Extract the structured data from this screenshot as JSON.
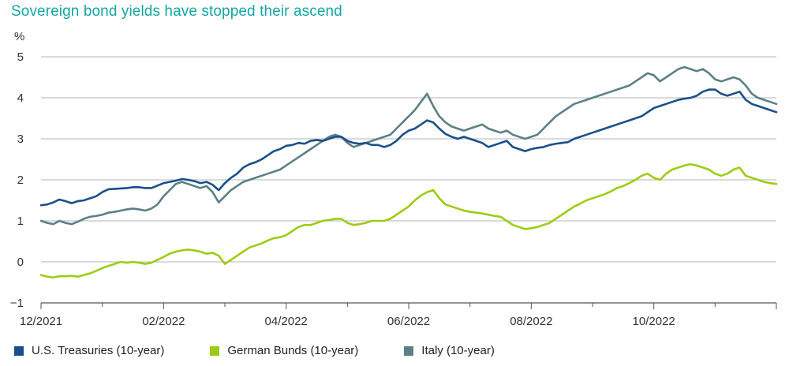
{
  "chart_data": {
    "type": "line",
    "title": "Sovereign bond yields have stopped their ascend",
    "ylabel": "%",
    "ylim": [
      -1,
      5
    ],
    "yticks": [
      -1,
      0,
      1,
      2,
      3,
      4,
      5
    ],
    "xticks": [
      "12/2021",
      "02/2022",
      "04/2022",
      "06/2022",
      "08/2022",
      "10/2022"
    ],
    "xtick_index": [
      0,
      20,
      40,
      60,
      80,
      100
    ],
    "n_points": 121,
    "grid": "horizontal",
    "legend": "bottom",
    "series": [
      {
        "name": "U.S. Treasuries (10-year)",
        "color": "#1a4f8b",
        "values": [
          1.38,
          1.4,
          1.45,
          1.52,
          1.48,
          1.43,
          1.48,
          1.5,
          1.55,
          1.6,
          1.7,
          1.77,
          1.78,
          1.79,
          1.8,
          1.82,
          1.82,
          1.8,
          1.8,
          1.86,
          1.92,
          1.95,
          1.98,
          2.02,
          2.0,
          1.97,
          1.92,
          1.95,
          1.88,
          1.75,
          1.92,
          2.05,
          2.15,
          2.3,
          2.38,
          2.43,
          2.5,
          2.6,
          2.7,
          2.75,
          2.83,
          2.85,
          2.9,
          2.88,
          2.95,
          2.97,
          2.95,
          3.0,
          3.05,
          3.05,
          2.95,
          2.9,
          2.88,
          2.9,
          2.85,
          2.85,
          2.8,
          2.85,
          2.95,
          3.1,
          3.2,
          3.25,
          3.35,
          3.45,
          3.4,
          3.25,
          3.12,
          3.05,
          3.0,
          3.05,
          3.0,
          2.95,
          2.9,
          2.8,
          2.85,
          2.9,
          2.95,
          2.8,
          2.75,
          2.7,
          2.75,
          2.78,
          2.8,
          2.85,
          2.88,
          2.9,
          2.92,
          3.0,
          3.05,
          3.1,
          3.15,
          3.2,
          3.25,
          3.3,
          3.35,
          3.4,
          3.45,
          3.5,
          3.55,
          3.65,
          3.75,
          3.8,
          3.85,
          3.9,
          3.95,
          3.98,
          4.0,
          4.05,
          4.15,
          4.2,
          4.2,
          4.1,
          4.05,
          4.1,
          4.15,
          3.95,
          3.85,
          3.8,
          3.75,
          3.7,
          3.65
        ]
      },
      {
        "name": "German Bunds (10-year)",
        "color": "#9ccc15",
        "values": [
          -0.32,
          -0.36,
          -0.38,
          -0.35,
          -0.35,
          -0.34,
          -0.36,
          -0.32,
          -0.28,
          -0.22,
          -0.15,
          -0.1,
          -0.05,
          0.0,
          -0.02,
          0.0,
          -0.02,
          -0.05,
          -0.02,
          0.05,
          0.12,
          0.2,
          0.25,
          0.28,
          0.3,
          0.28,
          0.25,
          0.2,
          0.22,
          0.15,
          -0.05,
          0.05,
          0.15,
          0.25,
          0.35,
          0.4,
          0.45,
          0.52,
          0.58,
          0.6,
          0.65,
          0.75,
          0.85,
          0.9,
          0.9,
          0.95,
          1.0,
          1.02,
          1.05,
          1.05,
          0.95,
          0.9,
          0.92,
          0.95,
          1.0,
          1.0,
          1.0,
          1.05,
          1.15,
          1.25,
          1.35,
          1.5,
          1.62,
          1.7,
          1.75,
          1.55,
          1.4,
          1.35,
          1.3,
          1.25,
          1.22,
          1.2,
          1.18,
          1.15,
          1.12,
          1.1,
          1.0,
          0.9,
          0.85,
          0.8,
          0.82,
          0.85,
          0.9,
          0.95,
          1.05,
          1.15,
          1.25,
          1.35,
          1.42,
          1.5,
          1.55,
          1.6,
          1.65,
          1.72,
          1.8,
          1.85,
          1.92,
          2.0,
          2.1,
          2.15,
          2.05,
          2.0,
          2.15,
          2.25,
          2.3,
          2.35,
          2.38,
          2.35,
          2.3,
          2.25,
          2.15,
          2.1,
          2.15,
          2.25,
          2.3,
          2.1,
          2.05,
          2.0,
          1.95,
          1.92,
          1.9
        ]
      },
      {
        "name": "Italy (10-year)",
        "color": "#5d7f87",
        "values": [
          1.0,
          0.95,
          0.92,
          1.0,
          0.95,
          0.92,
          0.98,
          1.05,
          1.1,
          1.12,
          1.15,
          1.2,
          1.22,
          1.25,
          1.28,
          1.3,
          1.28,
          1.25,
          1.3,
          1.4,
          1.6,
          1.75,
          1.9,
          1.95,
          1.9,
          1.85,
          1.8,
          1.85,
          1.7,
          1.45,
          1.6,
          1.75,
          1.85,
          1.95,
          2.0,
          2.05,
          2.1,
          2.15,
          2.2,
          2.25,
          2.35,
          2.45,
          2.55,
          2.65,
          2.75,
          2.85,
          2.95,
          3.05,
          3.1,
          3.05,
          2.9,
          2.8,
          2.85,
          2.9,
          2.95,
          3.0,
          3.05,
          3.1,
          3.25,
          3.4,
          3.55,
          3.7,
          3.9,
          4.1,
          3.8,
          3.55,
          3.4,
          3.3,
          3.25,
          3.2,
          3.25,
          3.3,
          3.35,
          3.25,
          3.2,
          3.15,
          3.2,
          3.1,
          3.05,
          3.0,
          3.05,
          3.1,
          3.25,
          3.4,
          3.55,
          3.65,
          3.75,
          3.85,
          3.9,
          3.95,
          4.0,
          4.05,
          4.1,
          4.15,
          4.2,
          4.25,
          4.3,
          4.4,
          4.5,
          4.6,
          4.55,
          4.4,
          4.5,
          4.6,
          4.7,
          4.75,
          4.7,
          4.65,
          4.7,
          4.6,
          4.45,
          4.4,
          4.45,
          4.5,
          4.45,
          4.3,
          4.1,
          4.0,
          3.95,
          3.9,
          3.85
        ]
      }
    ]
  }
}
